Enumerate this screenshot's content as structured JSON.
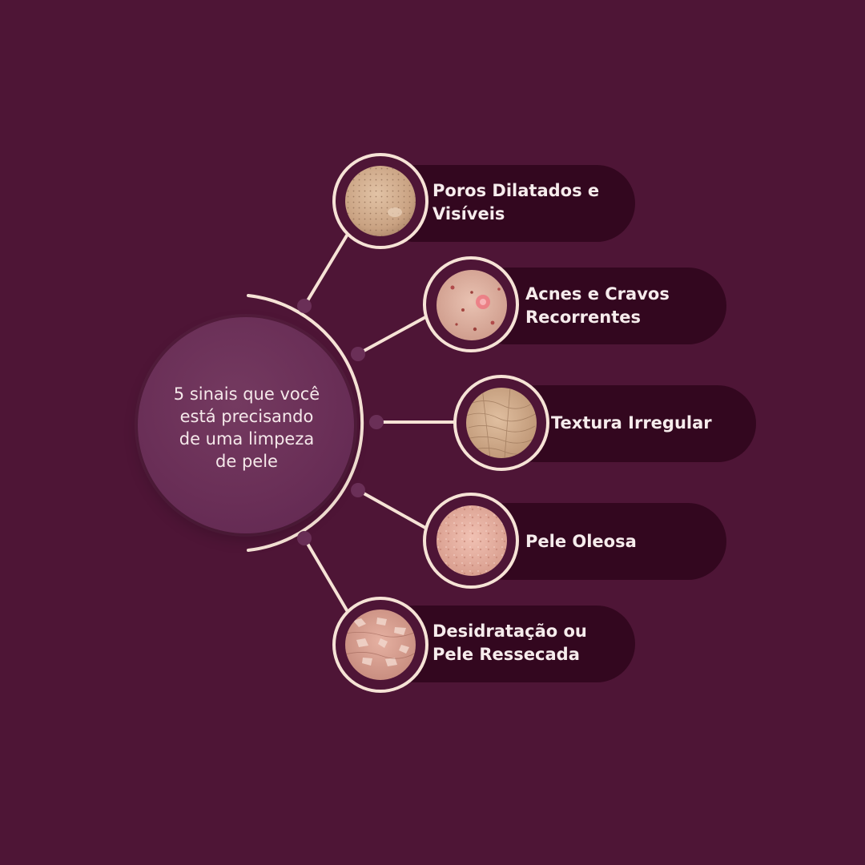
{
  "center": {
    "text": "5 sinais que você\nestá precisando\nde uma limpeza\nde pele"
  },
  "items": [
    {
      "label": "Poros Dilatados e\nVisíveis",
      "image": "skin-pores-closeup"
    },
    {
      "label": "Acnes e Cravos\nRecorrentes",
      "image": "skin-acne-closeup"
    },
    {
      "label": "Textura Irregular",
      "image": "skin-texture-closeup"
    },
    {
      "label": "Pele Oleosa",
      "image": "skin-oily-closeup"
    },
    {
      "label": "Desidratação ou\nPele Ressecada",
      "image": "skin-dry-flaky-closeup"
    }
  ],
  "colors": {
    "background": "#4e1536",
    "pill": "#33071f",
    "connector": "#f6e3d6",
    "center_circle": "#6a2f57",
    "node_dot": "#6a2f57"
  }
}
